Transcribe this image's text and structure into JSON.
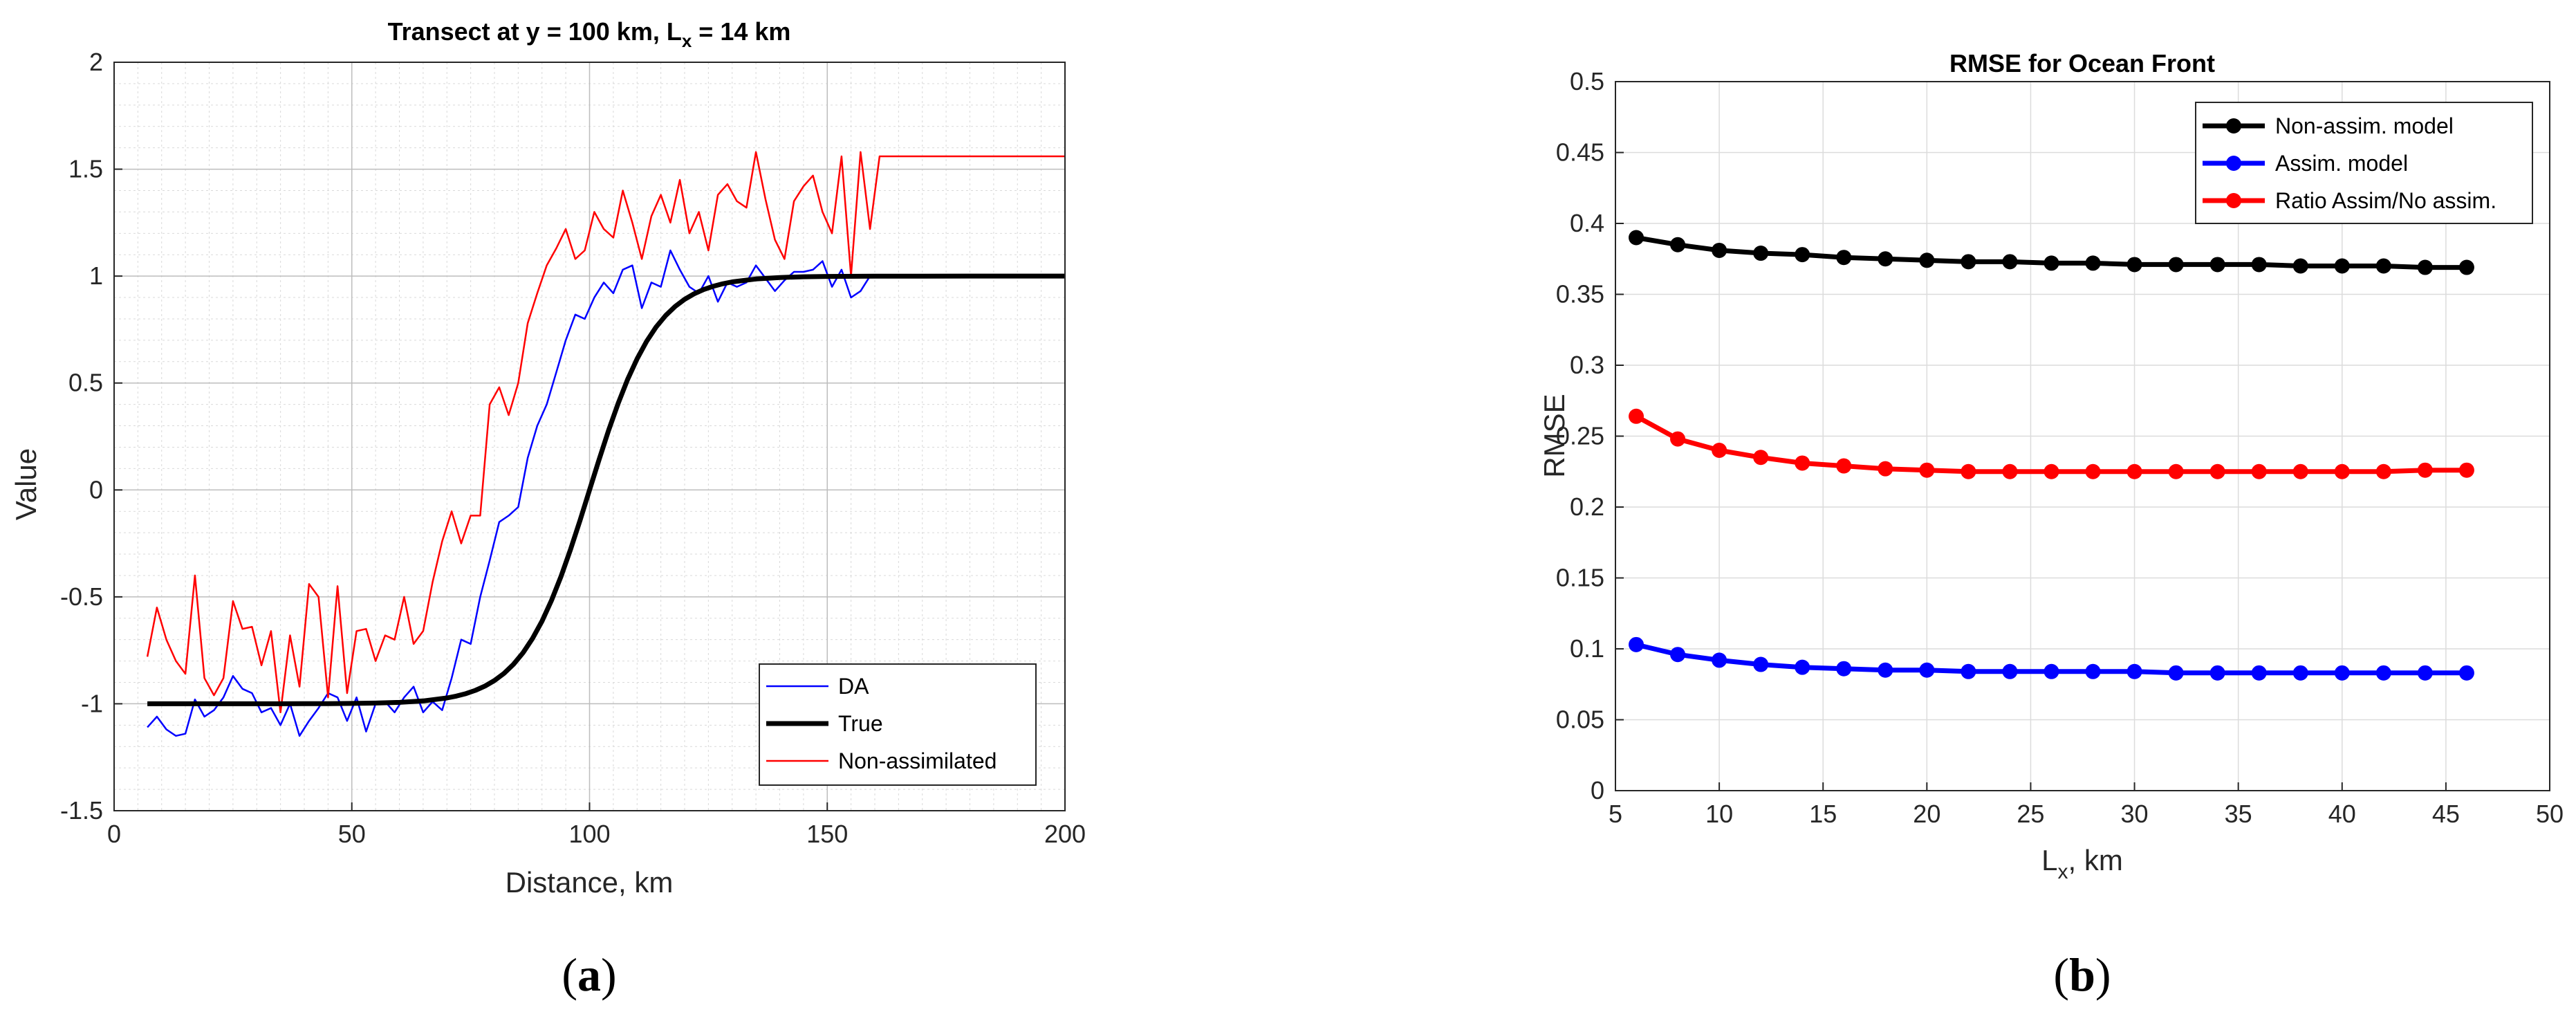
{
  "panels": [
    {
      "open": "(",
      "letter": "a",
      "close": ")"
    },
    {
      "open": "(",
      "letter": "b",
      "close": ")"
    }
  ],
  "chart_data": [
    {
      "type": "line",
      "title_parts": {
        "prefix": "Transect at y = 100 km, L",
        "sub": "x",
        "suffix": " = 14 km"
      },
      "xlabel": "Distance, km",
      "ylabel": "Value",
      "xlim": [
        0,
        200
      ],
      "ylim": [
        -1.5,
        2
      ],
      "xticks": [
        0,
        50,
        100,
        150,
        200
      ],
      "yticks": [
        -1.5,
        -1,
        -0.5,
        0,
        0.5,
        1,
        1.5,
        2
      ],
      "grid": "major and minor",
      "legend_position": "bottom-right",
      "series": [
        {
          "name": "DA",
          "color": "#0000ff",
          "x": [
            7,
            9,
            11,
            13,
            15,
            17,
            19,
            21,
            23,
            25,
            27,
            29,
            31,
            33,
            35,
            37,
            39,
            41,
            43,
            45,
            47,
            49,
            51,
            53,
            55,
            57,
            59,
            61,
            63,
            65,
            67,
            69,
            71,
            73,
            75,
            77,
            79,
            81,
            83,
            85,
            87,
            89,
            91,
            93,
            95,
            97,
            99,
            101,
            103,
            105,
            107,
            109,
            111,
            113,
            115,
            117,
            119,
            121,
            123,
            125,
            127,
            129,
            131,
            133,
            135,
            137,
            139,
            141,
            143,
            145,
            147,
            149,
            151,
            153,
            155,
            157,
            159,
            161,
            163,
            165,
            167,
            169,
            171,
            173,
            175,
            177,
            179,
            181,
            183,
            185,
            187,
            189,
            191,
            193,
            195,
            197,
            199
          ],
          "y": [
            -1.11,
            -1.06,
            -1.12,
            -1.15,
            -1.14,
            -0.98,
            -1.06,
            -1.03,
            -0.97,
            -0.87,
            -0.93,
            -0.95,
            -1.04,
            -1.02,
            -1.1,
            -1.0,
            -1.15,
            -1.08,
            -1.02,
            -0.95,
            -0.97,
            -1.08,
            -0.97,
            -1.13,
            -1.0,
            -0.99,
            -1.04,
            -0.97,
            -0.92,
            -1.04,
            -0.99,
            -1.03,
            -0.88,
            -0.7,
            -0.72,
            -0.5,
            -0.33,
            -0.15,
            -0.12,
            -0.08,
            0.15,
            0.3,
            0.4,
            0.55,
            0.7,
            0.82,
            0.8,
            0.9,
            0.97,
            0.92,
            1.03,
            1.05,
            0.85,
            0.97,
            0.95,
            1.12,
            1.03,
            0.95,
            0.92,
            1.0,
            0.88,
            0.97,
            0.95,
            0.97,
            1.05,
            0.99,
            0.93,
            0.98,
            1.02,
            1.02,
            1.03,
            1.07,
            0.95,
            1.03,
            0.9,
            0.93,
            1.0,
            1.0,
            1.0,
            1.0,
            1.0,
            1.0,
            1.0,
            1.0,
            1.0,
            1.0,
            1.0,
            1.0,
            1.0,
            1.0,
            1.0,
            1.0,
            1.0,
            1.0,
            1.0,
            1.0,
            1.0
          ]
        },
        {
          "name": "True",
          "color": "#000000",
          "x": [
            7,
            10,
            15,
            20,
            25,
            30,
            35,
            40,
            45,
            50,
            55,
            60,
            65,
            70,
            72,
            74,
            76,
            78,
            80,
            82,
            84,
            86,
            88,
            90,
            92,
            94,
            96,
            98,
            100,
            102,
            104,
            106,
            108,
            110,
            112,
            114,
            116,
            118,
            120,
            122,
            124,
            126,
            128,
            130,
            135,
            140,
            145,
            150,
            160,
            170,
            180,
            190,
            200
          ],
          "y": [
            -1.0,
            -1.0,
            -1.0,
            -1.0,
            -1.0,
            -1.0,
            -1.0,
            -1.0,
            -1.0,
            -0.999,
            -0.997,
            -0.992,
            -0.98,
            -0.95,
            -0.93,
            -0.91,
            -0.88,
            -0.84,
            -0.79,
            -0.72,
            -0.64,
            -0.55,
            -0.44,
            -0.33,
            -0.21,
            -0.07,
            0.05,
            0.17,
            0.0,
            0.17,
            0.3,
            0.42,
            0.53,
            0.62,
            0.7,
            0.77,
            0.82,
            0.86,
            0.9,
            0.925,
            0.945,
            0.96,
            0.97,
            0.98,
            0.99,
            0.995,
            0.998,
            1.0,
            1.0,
            1.0,
            1.0,
            1.0,
            1.0
          ]
        },
        {
          "name": "Non-assimilated",
          "color": "#ff0000",
          "x": [
            7,
            9,
            11,
            13,
            15,
            17,
            19,
            21,
            23,
            25,
            27,
            29,
            31,
            33,
            35,
            37,
            39,
            41,
            43,
            45,
            47,
            49,
            51,
            53,
            55,
            57,
            59,
            61,
            63,
            65,
            67,
            69,
            71,
            73,
            75,
            77,
            79,
            81,
            83,
            85,
            87,
            89,
            91,
            93,
            95,
            97,
            99,
            101,
            103,
            105,
            107,
            109,
            111,
            113,
            115,
            117,
            119,
            121,
            123,
            125,
            127,
            129,
            131,
            133,
            135,
            137,
            139,
            141,
            143,
            145,
            147,
            149,
            151,
            153,
            155,
            157,
            159,
            161,
            163,
            165,
            167,
            169,
            171,
            173,
            175,
            177,
            179,
            181,
            183,
            185,
            187,
            189,
            191,
            193,
            195,
            197,
            199,
            200
          ],
          "y": [
            -0.78,
            -0.55,
            -0.7,
            -0.8,
            -0.86,
            -0.4,
            -0.88,
            -0.96,
            -0.88,
            -0.52,
            -0.65,
            -0.64,
            -0.82,
            -0.66,
            -1.04,
            -0.68,
            -0.92,
            -0.44,
            -0.5,
            -0.97,
            -0.45,
            -0.95,
            -0.66,
            -0.65,
            -0.8,
            -0.68,
            -0.7,
            -0.5,
            -0.72,
            -0.66,
            -0.43,
            -0.24,
            -0.1,
            -0.25,
            -0.12,
            -0.12,
            0.4,
            0.48,
            0.35,
            0.5,
            0.78,
            0.92,
            1.05,
            1.13,
            1.22,
            1.08,
            1.12,
            1.3,
            1.22,
            1.18,
            1.4,
            1.25,
            1.08,
            1.28,
            1.38,
            1.25,
            1.45,
            1.2,
            1.3,
            1.12,
            1.38,
            1.43,
            1.35,
            1.32,
            1.58,
            1.36,
            1.17,
            1.08,
            1.35,
            1.42,
            1.47,
            1.3,
            1.2,
            1.56,
            1.0,
            1.58,
            1.22,
            1.56,
            1.56,
            1.56,
            1.56,
            1.56,
            1.56,
            1.56,
            1.56,
            1.56,
            1.56,
            1.56,
            1.56,
            1.56,
            1.56,
            1.56,
            1.56,
            1.56,
            1.56,
            1.56,
            1.56,
            1.56
          ]
        }
      ]
    },
    {
      "type": "line",
      "title": "RMSE for Ocean Front",
      "xlabel_parts": {
        "prefix": "L",
        "sub": "x",
        "suffix": ", km"
      },
      "ylabel": "RMSE",
      "xlim": [
        5,
        50
      ],
      "ylim": [
        0,
        0.5
      ],
      "xticks": [
        5,
        10,
        15,
        20,
        25,
        30,
        35,
        40,
        45,
        50
      ],
      "yticks": [
        0,
        0.05,
        0.1,
        0.15,
        0.2,
        0.25,
        0.3,
        0.35,
        0.4,
        0.45,
        0.5
      ],
      "grid": "major",
      "legend_position": "top-right",
      "x": [
        6,
        8,
        10,
        12,
        14,
        16,
        18,
        20,
        22,
        24,
        26,
        28,
        30,
        32,
        34,
        36,
        38,
        40,
        42,
        44,
        46
      ],
      "series": [
        {
          "name": "Non-assim. model",
          "color": "#000000",
          "values": [
            0.39,
            0.385,
            0.381,
            0.379,
            0.378,
            0.376,
            0.375,
            0.374,
            0.373,
            0.373,
            0.372,
            0.372,
            0.371,
            0.371,
            0.371,
            0.371,
            0.37,
            0.37,
            0.37,
            0.369,
            0.369
          ]
        },
        {
          "name": "Assim. model",
          "color": "#0000ff",
          "values": [
            0.103,
            0.096,
            0.092,
            0.089,
            0.087,
            0.086,
            0.085,
            0.085,
            0.084,
            0.084,
            0.084,
            0.084,
            0.084,
            0.083,
            0.083,
            0.083,
            0.083,
            0.083,
            0.083,
            0.083,
            0.083
          ]
        },
        {
          "name": "Ratio Assim/No assim.",
          "color": "#ff0000",
          "values": [
            0.264,
            0.248,
            0.24,
            0.235,
            0.231,
            0.229,
            0.227,
            0.226,
            0.225,
            0.225,
            0.225,
            0.225,
            0.225,
            0.225,
            0.225,
            0.225,
            0.225,
            0.225,
            0.225,
            0.226,
            0.226
          ]
        }
      ]
    }
  ]
}
